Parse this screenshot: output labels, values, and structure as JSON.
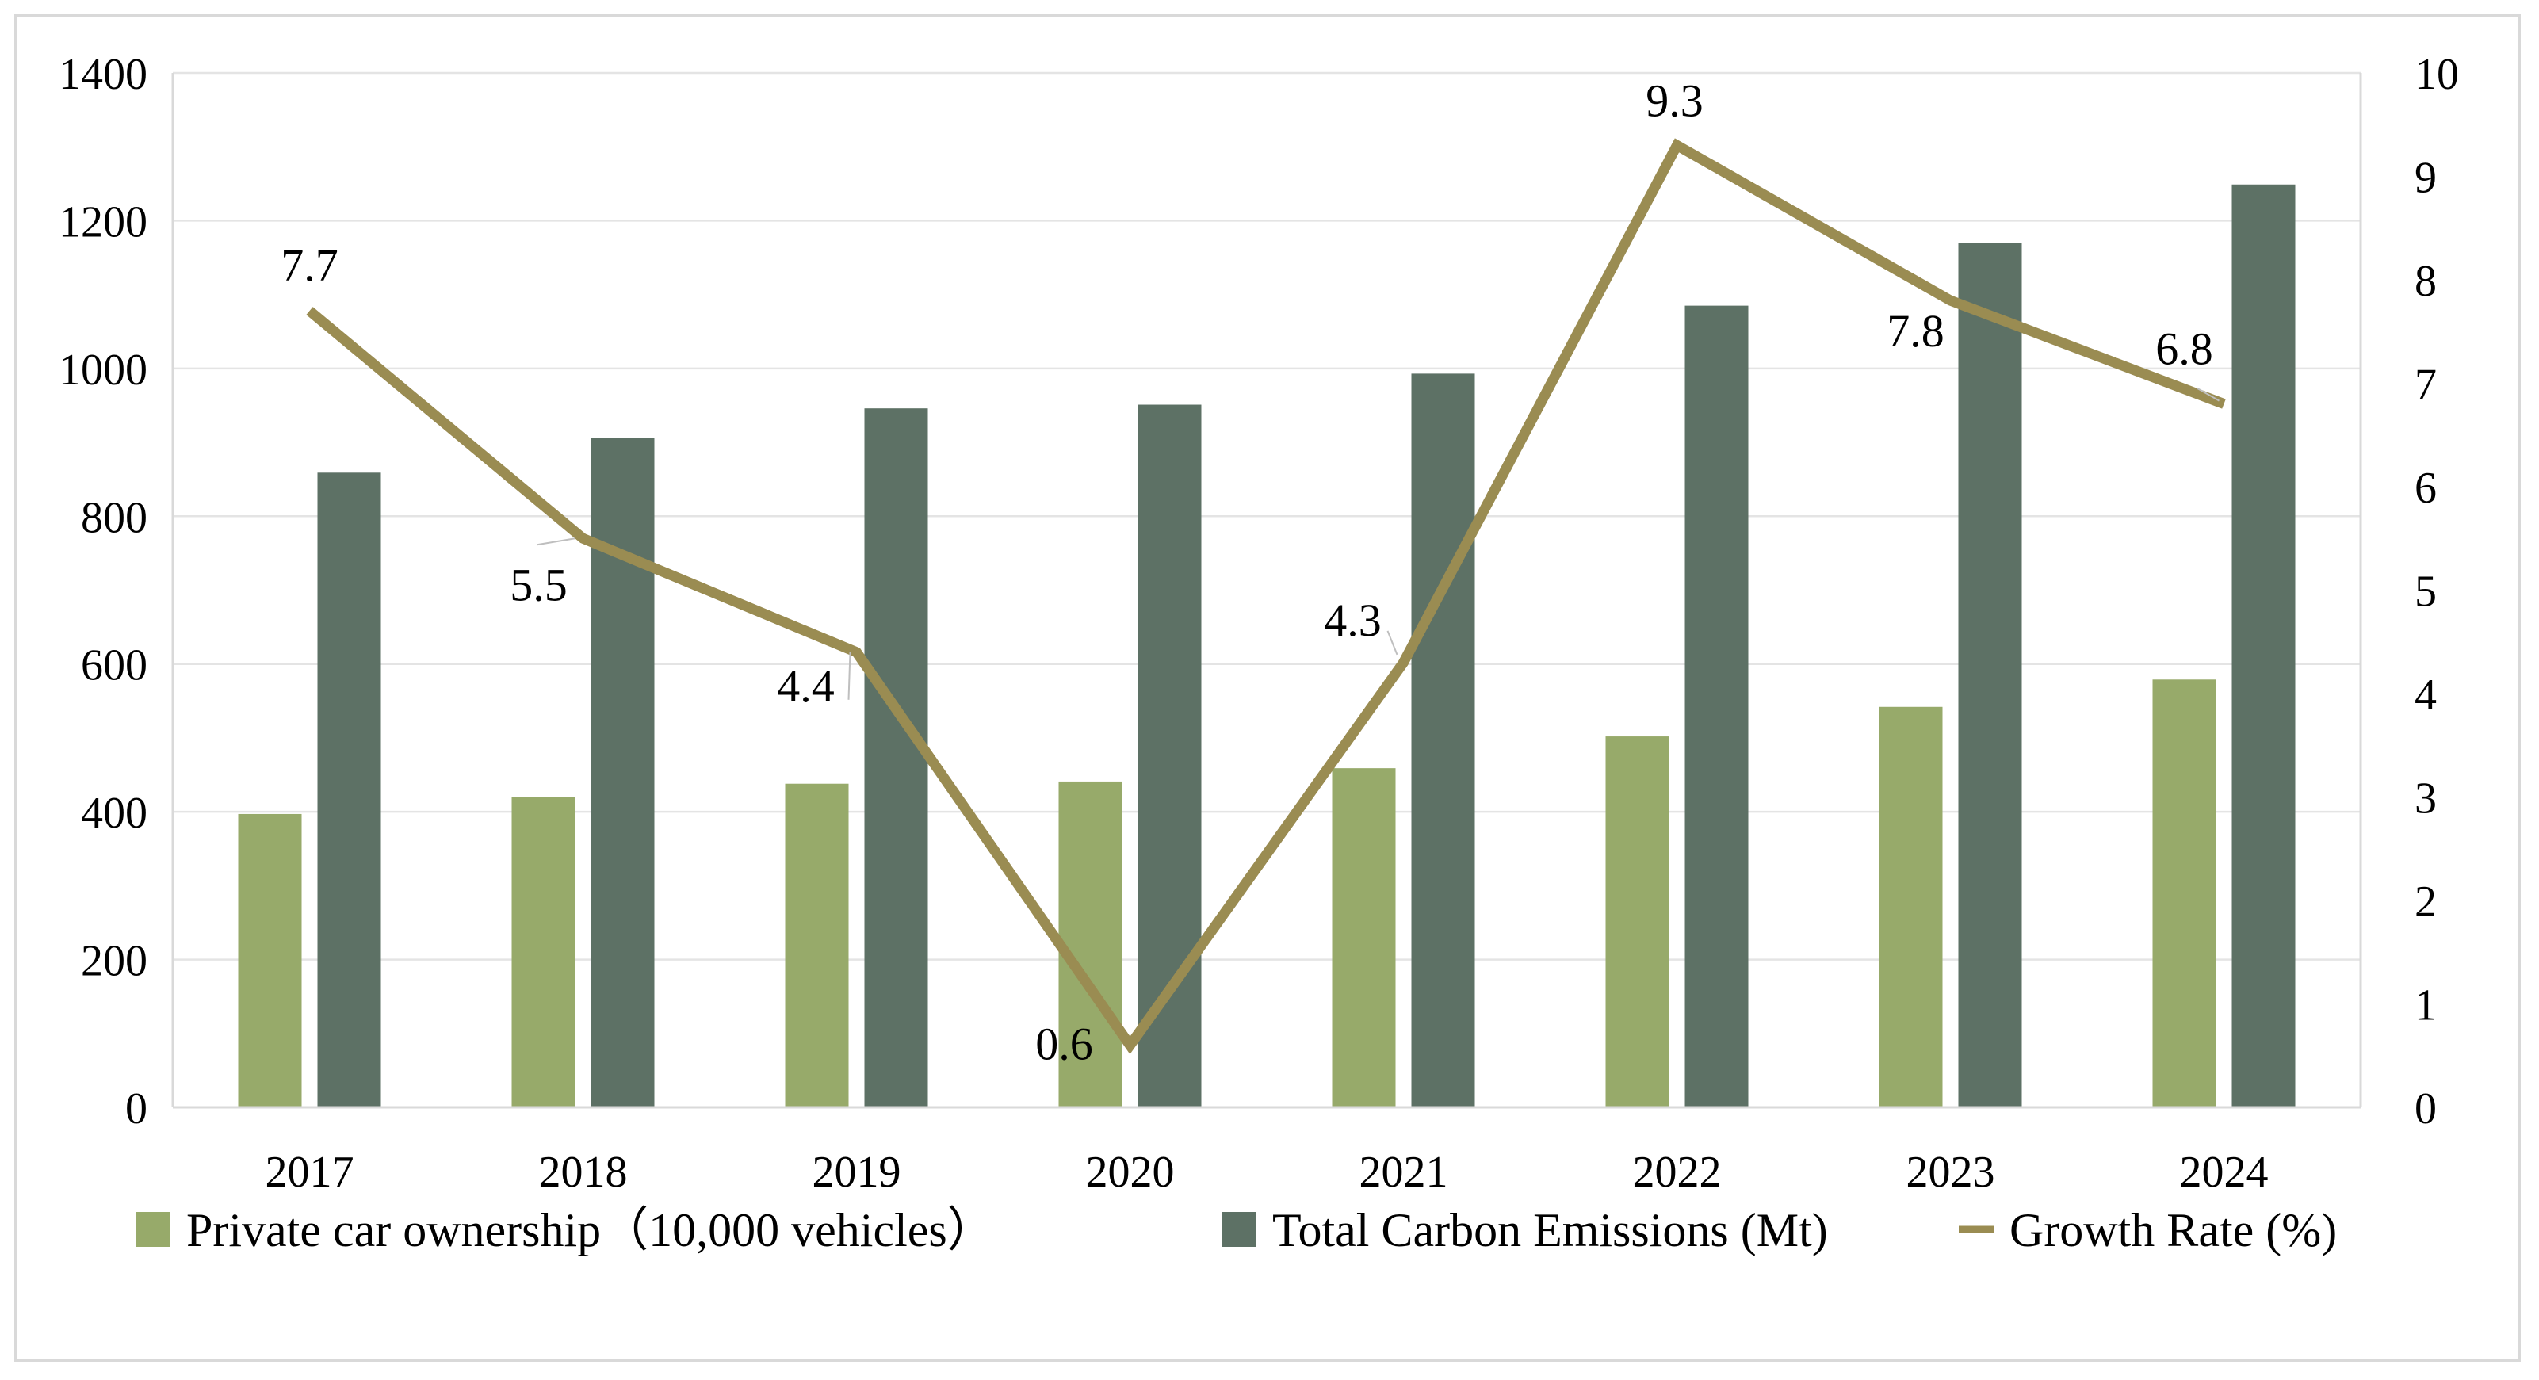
{
  "chart_data": {
    "type": "bar",
    "categories": [
      "2017",
      "2018",
      "2019",
      "2020",
      "2021",
      "2022",
      "2023",
      "2024"
    ],
    "series": [
      {
        "name": "Private car ownership（10,000 vehicles）",
        "kind": "bar",
        "axis": "left",
        "color": "#97aa6a",
        "values": [
          397,
          420,
          438,
          441,
          459,
          502,
          542,
          579
        ]
      },
      {
        "name": "Total Carbon Emissions (Mt)",
        "kind": "bar",
        "axis": "left",
        "color": "#5d7165",
        "values": [
          859,
          906,
          946,
          951,
          993,
          1085,
          1170,
          1249
        ]
      },
      {
        "name": "Growth Rate (%)",
        "kind": "line",
        "axis": "right",
        "color": "#9a8c52",
        "values": [
          7.7,
          5.5,
          4.4,
          0.6,
          4.3,
          9.3,
          7.8,
          6.8
        ],
        "labels": [
          "7.7",
          "5.5",
          "4.4",
          "0.6",
          "4.3",
          "9.3",
          "7.8",
          "6.8"
        ]
      }
    ],
    "y_left": {
      "min": 0,
      "max": 1400,
      "ticks": [
        "0",
        "200",
        "400",
        "600",
        "800",
        "1000",
        "1200",
        "1400"
      ]
    },
    "y_right": {
      "min": 0,
      "max": 10,
      "ticks": [
        "0",
        "1",
        "2",
        "3",
        "4",
        "5",
        "6",
        "7",
        "8",
        "9",
        "10"
      ]
    },
    "grid": true,
    "legend_position": "bottom",
    "title": "",
    "xlabel": "",
    "ylabel": ""
  }
}
